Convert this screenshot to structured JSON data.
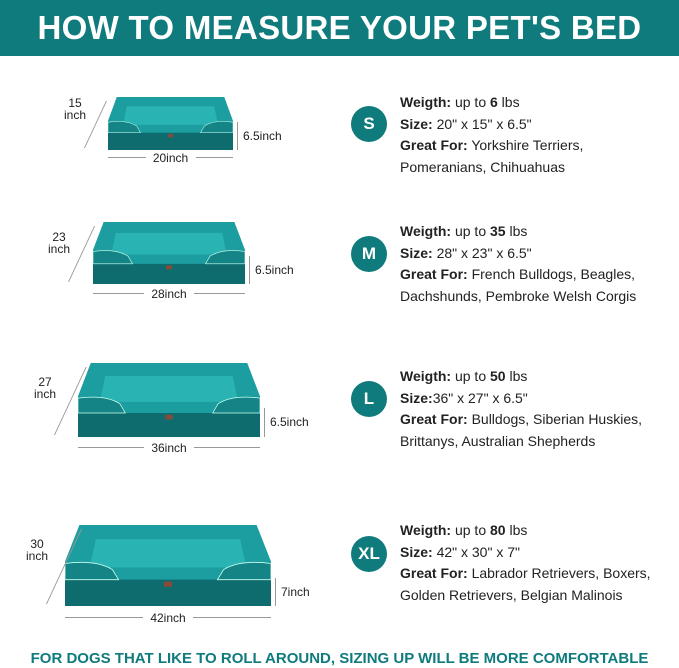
{
  "header": {
    "title": "HOW TO MEASURE YOUR PET'S BED"
  },
  "colors": {
    "brand": "#0f7b7d",
    "bed_top": "#1c9d9f",
    "bed_base": "#0e6c6e"
  },
  "sizes": [
    {
      "badge": "S",
      "weight_label": "Weigth:",
      "weight_pre": " up to ",
      "weight_value": "6",
      "weight_unit": " lbs",
      "size_label": "Size:",
      "size_value": " 20\" x 15\" x 6.5\"",
      "great_label": "Great For:",
      "great_line1": " Yorkshire Terriers,",
      "great_line2": "Pomeranians, Chihuahuas",
      "width_dim": "20inch",
      "depth_dim_num": "15",
      "depth_dim_unit": "inch",
      "height_dim": "6.5inch"
    },
    {
      "badge": "M",
      "weight_label": "Weigth:",
      "weight_pre": " up to ",
      "weight_value": "35",
      "weight_unit": " lbs",
      "size_label": "Size:",
      "size_value": " 28\" x 23\" x 6.5\"",
      "great_label": "Great For:",
      "great_line1": " French Bulldogs, Beagles,",
      "great_line2": "Dachshunds, Pembroke Welsh Corgis",
      "width_dim": "28inch",
      "depth_dim_num": "23",
      "depth_dim_unit": "inch",
      "height_dim": "6.5inch"
    },
    {
      "badge": "L",
      "weight_label": "Weigth:",
      "weight_pre": " up to ",
      "weight_value": "50",
      "weight_unit": " lbs",
      "size_label": "Size:",
      "size_value": "36\" x 27\" x 6.5\"",
      "great_label": "Great For:",
      "great_line1": " Bulldogs, Siberian Huskies,",
      "great_line2": "Brittanys, Australian Shepherds",
      "width_dim": "36inch",
      "depth_dim_num": "27",
      "depth_dim_unit": "inch",
      "height_dim": "6.5inch"
    },
    {
      "badge": "XL",
      "weight_label": "Weigth:",
      "weight_pre": " up to ",
      "weight_value": "80",
      "weight_unit": " lbs",
      "size_label": "Size:",
      "size_value": " 42\" x 30\" x 7\"",
      "great_label": "Great For:",
      "great_line1": " Labrador Retrievers, Boxers,",
      "great_line2": "Golden Retrievers, Belgian Malinois",
      "width_dim": "42inch",
      "depth_dim_num": "30",
      "depth_dim_unit": "inch",
      "height_dim": "7inch"
    }
  ],
  "footer": {
    "text": "FOR DOGS THAT LIKE TO ROLL AROUND, SIZING UP WILL BE MORE COMFORTABLE"
  }
}
